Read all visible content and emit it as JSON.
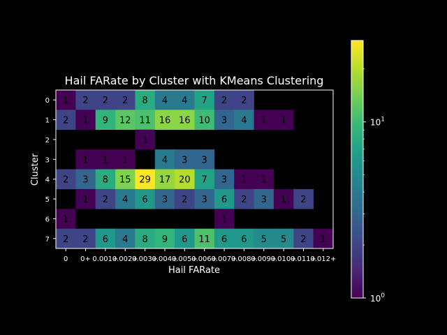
{
  "chart_data": {
    "type": "heatmap",
    "title": "Hail FARate by Cluster with KMeans Clustering",
    "xlabel": "Hail FARate",
    "ylabel": "Cluster",
    "x_tick_labels": [
      "0",
      "0+",
      "0.001+",
      "0.002+",
      "0.003+",
      "0.004+",
      "0.005+",
      "0.006+",
      "0.007+",
      "0.008+",
      "0.009+",
      "0.010+",
      "0.011+",
      "0.012+"
    ],
    "y_tick_labels": [
      "0",
      "1",
      "2",
      "3",
      "4",
      "5",
      "6",
      "7"
    ],
    "values": [
      [
        1,
        2,
        2,
        2,
        8,
        4,
        4,
        7,
        2,
        2,
        null,
        null,
        null,
        null
      ],
      [
        2,
        1,
        9,
        12,
        11,
        16,
        16,
        10,
        3,
        4,
        1,
        1,
        null,
        null
      ],
      [
        null,
        null,
        null,
        null,
        1,
        null,
        null,
        null,
        null,
        null,
        null,
        null,
        null,
        null
      ],
      [
        null,
        1,
        1,
        1,
        null,
        4,
        3,
        3,
        null,
        null,
        null,
        null,
        null,
        null
      ],
      [
        2,
        3,
        8,
        15,
        29,
        17,
        20,
        7,
        3,
        1,
        1,
        null,
        null,
        null
      ],
      [
        null,
        1,
        2,
        4,
        6,
        3,
        2,
        3,
        6,
        2,
        3,
        1,
        2,
        null
      ],
      [
        1,
        null,
        null,
        null,
        null,
        null,
        null,
        null,
        1,
        null,
        null,
        null,
        null,
        null
      ],
      [
        2,
        2,
        6,
        4,
        8,
        9,
        6,
        11,
        6,
        6,
        5,
        5,
        2,
        1
      ]
    ],
    "colorbar": {
      "scale": "log",
      "colormap": "viridis",
      "range": [
        1,
        29
      ],
      "tick_values": [
        1,
        10
      ],
      "tick_labels": [
        {
          "base": "10",
          "exp": "0"
        },
        {
          "base": "10",
          "exp": "1"
        }
      ]
    },
    "background": "#000000",
    "text_color": "#ffffff"
  }
}
